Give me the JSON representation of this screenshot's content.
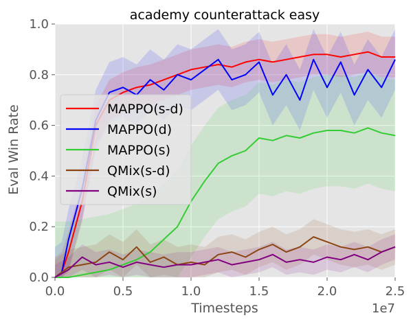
{
  "chart_data": {
    "type": "line",
    "title": "academy counterattack easy",
    "xlabel": "Timesteps",
    "ylabel": "Eval Win Rate",
    "x_offset_text": "1e7",
    "xlim": [
      0,
      2.5
    ],
    "ylim": [
      0,
      1.0
    ],
    "xticks": [
      0,
      0.5,
      1.0,
      1.5,
      2.0,
      2.5
    ],
    "xtick_labels": [
      "0.0",
      "0.5",
      "1.0",
      "1.5",
      "2.0",
      "2.5"
    ],
    "yticks": [
      0,
      0.2,
      0.4,
      0.6,
      0.8,
      1.0
    ],
    "ytick_labels": [
      "0.0",
      "0.2",
      "0.4",
      "0.6",
      "0.8",
      "1.0"
    ],
    "grid": true,
    "legend_position": "center-left",
    "series": [
      {
        "name": "MAPPO(s-d)",
        "color": "#ff0000",
        "x": [
          0,
          0.05,
          0.1,
          0.15,
          0.2,
          0.3,
          0.4,
          0.5,
          0.6,
          0.7,
          0.8,
          0.9,
          1.0,
          1.1,
          1.2,
          1.3,
          1.4,
          1.5,
          1.6,
          1.7,
          1.8,
          1.9,
          2.0,
          2.1,
          2.2,
          2.3,
          2.4,
          2.5
        ],
        "y": [
          0.0,
          0.02,
          0.1,
          0.2,
          0.3,
          0.6,
          0.7,
          0.73,
          0.75,
          0.76,
          0.78,
          0.8,
          0.82,
          0.83,
          0.84,
          0.83,
          0.85,
          0.86,
          0.85,
          0.86,
          0.87,
          0.88,
          0.88,
          0.87,
          0.88,
          0.89,
          0.87,
          0.87
        ],
        "band": 0.08
      },
      {
        "name": "MAPPO(d)",
        "color": "#0000ff",
        "x": [
          0,
          0.05,
          0.1,
          0.15,
          0.2,
          0.3,
          0.4,
          0.5,
          0.6,
          0.7,
          0.8,
          0.9,
          1.0,
          1.1,
          1.2,
          1.3,
          1.4,
          1.5,
          1.6,
          1.7,
          1.8,
          1.9,
          2.0,
          2.1,
          2.2,
          2.3,
          2.4,
          2.5
        ],
        "y": [
          0.0,
          0.02,
          0.15,
          0.25,
          0.35,
          0.62,
          0.73,
          0.75,
          0.72,
          0.78,
          0.74,
          0.8,
          0.78,
          0.82,
          0.86,
          0.78,
          0.8,
          0.85,
          0.72,
          0.8,
          0.7,
          0.86,
          0.75,
          0.85,
          0.72,
          0.82,
          0.75,
          0.86
        ],
        "band": 0.12
      },
      {
        "name": "MAPPO(s)",
        "color": "#32cd32",
        "x": [
          0,
          0.1,
          0.2,
          0.3,
          0.4,
          0.5,
          0.6,
          0.7,
          0.8,
          0.9,
          1.0,
          1.1,
          1.2,
          1.3,
          1.4,
          1.5,
          1.6,
          1.7,
          1.8,
          1.9,
          2.0,
          2.1,
          2.2,
          2.3,
          2.4,
          2.5
        ],
        "y": [
          0.0,
          0.0,
          0.01,
          0.02,
          0.03,
          0.05,
          0.07,
          0.1,
          0.15,
          0.2,
          0.3,
          0.38,
          0.45,
          0.48,
          0.5,
          0.55,
          0.54,
          0.56,
          0.55,
          0.57,
          0.58,
          0.58,
          0.57,
          0.59,
          0.57,
          0.56
        ],
        "band": 0.22
      },
      {
        "name": "QMix(s-d)",
        "color": "#8b4513",
        "x": [
          0,
          0.1,
          0.2,
          0.3,
          0.4,
          0.5,
          0.6,
          0.7,
          0.8,
          0.9,
          1.0,
          1.1,
          1.2,
          1.3,
          1.4,
          1.5,
          1.6,
          1.7,
          1.8,
          1.9,
          2.0,
          2.1,
          2.2,
          2.3,
          2.4,
          2.5
        ],
        "y": [
          0.0,
          0.04,
          0.05,
          0.06,
          0.1,
          0.07,
          0.12,
          0.06,
          0.08,
          0.05,
          0.06,
          0.05,
          0.09,
          0.1,
          0.08,
          0.11,
          0.13,
          0.1,
          0.12,
          0.16,
          0.14,
          0.12,
          0.11,
          0.12,
          0.1,
          0.12
        ],
        "band": 0.07
      },
      {
        "name": "QMix(s)",
        "color": "#800080",
        "x": [
          0,
          0.1,
          0.2,
          0.3,
          0.4,
          0.5,
          0.6,
          0.7,
          0.8,
          0.9,
          1.0,
          1.1,
          1.2,
          1.3,
          1.4,
          1.5,
          1.6,
          1.7,
          1.8,
          1.9,
          2.0,
          2.1,
          2.2,
          2.3,
          2.4,
          2.5
        ],
        "y": [
          0.0,
          0.03,
          0.08,
          0.05,
          0.06,
          0.04,
          0.06,
          0.05,
          0.04,
          0.05,
          0.05,
          0.06,
          0.07,
          0.05,
          0.06,
          0.07,
          0.09,
          0.06,
          0.07,
          0.06,
          0.08,
          0.07,
          0.09,
          0.07,
          0.1,
          0.12
        ],
        "band": 0.05
      }
    ]
  }
}
